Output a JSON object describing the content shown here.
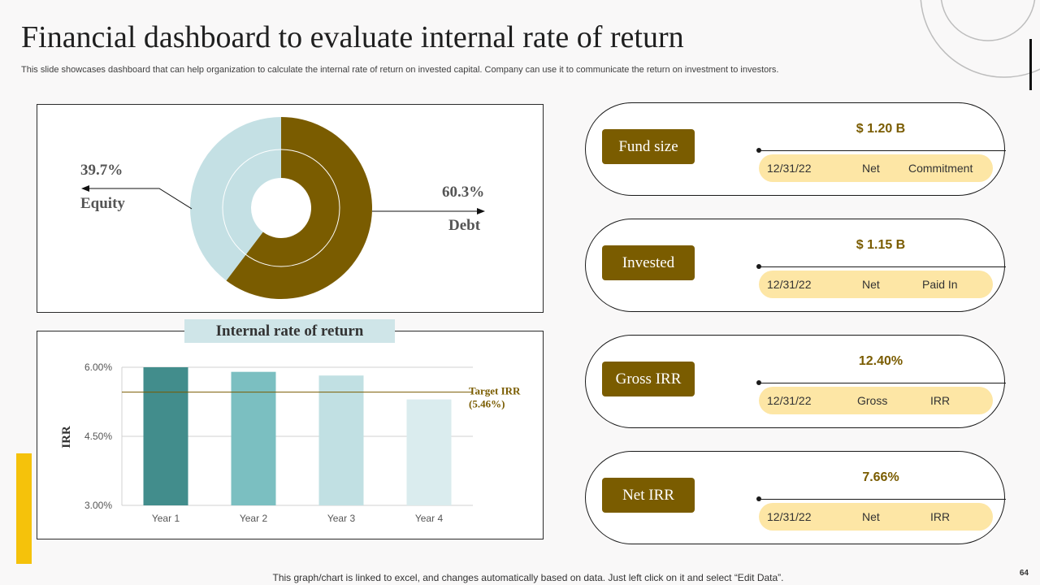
{
  "page": {
    "title": "Financial dashboard to evaluate internal rate of return",
    "subtitle": "This slide showcases dashboard that can help organization to calculate the internal rate of return on invested capital. Company can use it to  communicate the return on investment to investors.",
    "footer": "This graph/chart is linked to excel,  and changes automatically based on data. Just left click on it and select “Edit Data”.",
    "page_number": "64"
  },
  "colors": {
    "brown": "#7a5c00",
    "light_blue": "#c4e0e4",
    "pill": "#fde6a5",
    "yellow": "#f5c20b"
  },
  "chart_data": [
    {
      "type": "pie",
      "variant": "donut",
      "slices": [
        {
          "label": "Debt",
          "value": 60.3,
          "display": "60.3%",
          "color": "#7a5c00"
        },
        {
          "label": "Equity",
          "value": 39.7,
          "display": "39.7%",
          "color": "#c4e0e4"
        }
      ]
    },
    {
      "type": "bar",
      "title": "Internal rate of return",
      "ylabel": "IRR",
      "categories": [
        "Year 1",
        "Year 2",
        "Year 3",
        "Year 4"
      ],
      "values": [
        6.0,
        5.9,
        5.82,
        5.3
      ],
      "bar_colors": [
        "#428d8c",
        "#7bbfc1",
        "#c1e0e3",
        "#daecee"
      ],
      "ylim": [
        3.0,
        6.0
      ],
      "yticks": [
        "3.00%",
        "4.50%",
        "6.00%"
      ],
      "ytick_values": [
        3.0,
        4.5,
        6.0
      ],
      "target": {
        "value": 5.46,
        "label_line1": "Target IRR",
        "label_line2": "(5.46%)"
      },
      "grid": true
    }
  ],
  "cards": [
    {
      "label": "Fund size",
      "value": "$ 1.20 B",
      "date": "12/31/22",
      "tag1": "Net",
      "tag2": "Commitment"
    },
    {
      "label": "Invested",
      "value": "$ 1.15 B",
      "date": "12/31/22",
      "tag1": "Net",
      "tag2": "Paid In"
    },
    {
      "label": "Gross IRR",
      "value": "12.40%",
      "date": "12/31/22",
      "tag1": "Gross",
      "tag2": "IRR"
    },
    {
      "label": "Net IRR",
      "value": "7.66%",
      "date": "12/31/22",
      "tag1": "Net",
      "tag2": "IRR"
    }
  ]
}
